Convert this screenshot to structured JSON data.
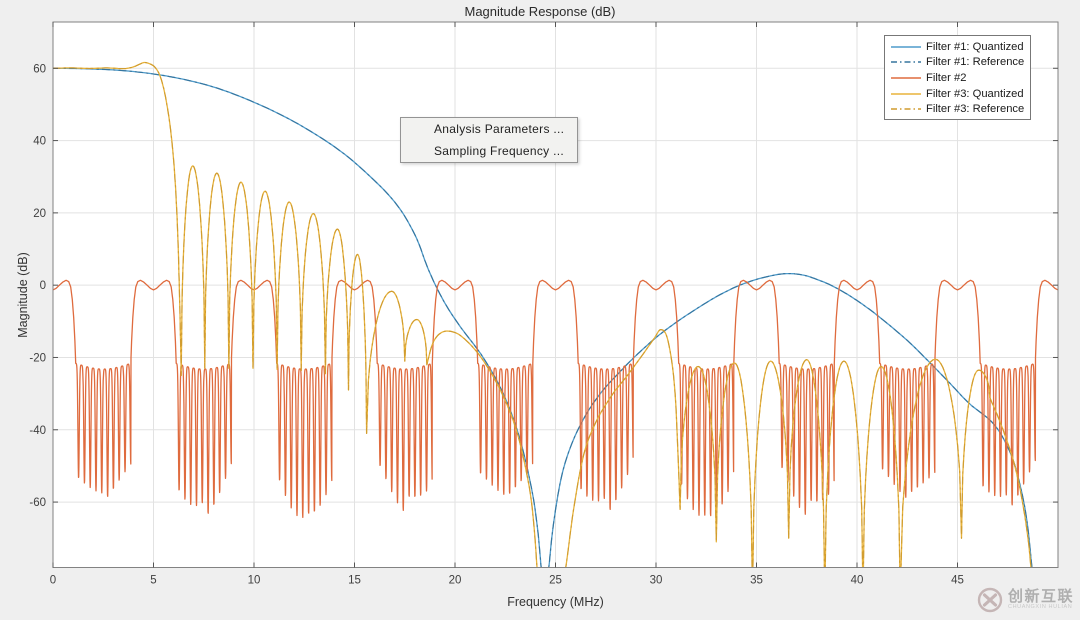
{
  "figure": {
    "background": "#efefef",
    "plot_background": "#ffffff",
    "grid_color": "#e2e2e2",
    "axis_color": "#828282",
    "tick_label_color": "#3f3f3f"
  },
  "watermark": {
    "logo_icon": "circle-x-logo",
    "main_text": "创新互联",
    "sub_text": "CHUANGXIN HULIAN",
    "color": "#acacac",
    "logo_color": "#c3b3b3"
  },
  "chart_data": {
    "type": "line",
    "title": "Magnitude Response (dB)",
    "xlabel": "Frequency (MHz)",
    "ylabel": "Magnitude (dB)",
    "xlim": [
      0,
      50
    ],
    "ylim": [
      -78.1,
      72.8
    ],
    "xticks": [
      0,
      5,
      10,
      15,
      20,
      25,
      30,
      35,
      40,
      45
    ],
    "yticks": [
      60,
      40,
      20,
      0,
      -20,
      -40,
      -60
    ],
    "grid": true,
    "legend_position": "northeast",
    "annotation_menu": {
      "items": [
        "Analysis Parameters ...",
        "Sampling Frequency ..."
      ]
    },
    "series": [
      {
        "name": "Filter #1: Quantized",
        "color": "#4e9bcb",
        "style": "solid",
        "kind": "spline",
        "points": [
          [
            0,
            60
          ],
          [
            2,
            59.8
          ],
          [
            4,
            59.1
          ],
          [
            6,
            57.5
          ],
          [
            8,
            54.8
          ],
          [
            10,
            50.6
          ],
          [
            12,
            45.2
          ],
          [
            14,
            38.3
          ],
          [
            15.5,
            31.5
          ],
          [
            17,
            23
          ],
          [
            18,
            14
          ],
          [
            18.7,
            4
          ],
          [
            19.4,
            -4
          ],
          [
            20.2,
            -11
          ],
          [
            21.4,
            -20
          ],
          [
            22.4,
            -30
          ],
          [
            23.2,
            -42
          ],
          [
            23.8,
            -56
          ],
          [
            24.1,
            -67
          ],
          [
            24.3,
            -79
          ],
          [
            24.45,
            -88
          ],
          [
            24.65,
            -79
          ],
          [
            24.9,
            -66
          ],
          [
            25.3,
            -53
          ],
          [
            25.8,
            -44
          ],
          [
            26.5,
            -36
          ],
          [
            27.3,
            -29.5
          ],
          [
            28.2,
            -24
          ],
          [
            29,
            -19.5
          ],
          [
            30,
            -14.5
          ],
          [
            31,
            -10.3
          ],
          [
            32,
            -6.6
          ],
          [
            33,
            -3.2
          ],
          [
            34,
            -0.4
          ],
          [
            35,
            1.6
          ],
          [
            36,
            2.9
          ],
          [
            36.7,
            3.2
          ],
          [
            37.4,
            2.7
          ],
          [
            38,
            1.6
          ],
          [
            38.7,
            0
          ],
          [
            39.6,
            -2.8
          ],
          [
            40.6,
            -6.6
          ],
          [
            41.6,
            -11
          ],
          [
            42.6,
            -15.8
          ],
          [
            43.6,
            -21.3
          ],
          [
            44.6,
            -27
          ],
          [
            45.6,
            -32.8
          ],
          [
            46.8,
            -38.4
          ],
          [
            47.6,
            -46
          ],
          [
            48.1,
            -55
          ],
          [
            48.45,
            -65
          ],
          [
            48.7,
            -78
          ],
          [
            48.85,
            -86
          ]
        ]
      },
      {
        "name": "Filter #1: Reference",
        "color": "#36759e",
        "style": "dashdot",
        "kind": "reference",
        "ref_of": 0
      },
      {
        "name": "Filter #2",
        "color": "#df6b3e",
        "style": "solid",
        "kind": "comb",
        "comb": {
          "period": 5,
          "bump_profile": [
            [
              0,
              -1.3
            ],
            [
              0.15,
              -0.9
            ],
            [
              0.3,
              -0.1
            ],
            [
              0.5,
              0.9
            ],
            [
              0.65,
              1.35
            ],
            [
              0.78,
              1.0
            ],
            [
              0.88,
              -0.5
            ],
            [
              0.96,
              -4
            ],
            [
              1.03,
              -9
            ],
            [
              1.09,
              -15.5
            ],
            [
              1.13,
              -21.6
            ]
          ],
          "bump_halfwidth": 1.13,
          "stopband_top": -21.6,
          "top_sag": 1.6,
          "notch_cells": 9.5,
          "notch_sigma": 0.115,
          "depth_base": -52,
          "depth_swing": 9,
          "depth_jitter": 3.5
        }
      },
      {
        "name": "Filter #3: Quantized",
        "color": "#e8b33c",
        "style": "solid",
        "kind": "segments",
        "segments": [
          {
            "mode": "line",
            "pts": [
              [
                0,
                60
              ],
              [
                0.9,
                60.1
              ],
              [
                1.8,
                59.95
              ],
              [
                2.7,
                60.1
              ],
              [
                3.5,
                59.9
              ],
              [
                3.95,
                60.3
              ],
              [
                4.3,
                61.1
              ],
              [
                4.55,
                61.6
              ],
              [
                4.85,
                61.15
              ],
              [
                5.1,
                60.1
              ],
              [
                5.35,
                57.5
              ],
              [
                5.6,
                52
              ],
              [
                5.85,
                43
              ],
              [
                6.05,
                31
              ],
              [
                6.2,
                15
              ],
              [
                6.3,
                -4
              ],
              [
                6.38,
                -25
              ]
            ]
          },
          {
            "mode": "lobes",
            "pts": [
              [
                6.38,
                -25
              ],
              [
                6.95,
                33
              ],
              [
                7.55,
                -23
              ],
              [
                8.15,
                31
              ],
              [
                8.75,
                -23
              ],
              [
                9.35,
                28.5
              ],
              [
                9.95,
                -23
              ],
              [
                10.55,
                26
              ],
              [
                11.15,
                -23.3
              ],
              [
                11.75,
                23
              ],
              [
                12.35,
                -23.6
              ],
              [
                12.95,
                19.8
              ],
              [
                13.55,
                -24.5
              ],
              [
                14.15,
                15.5
              ],
              [
                14.7,
                -29
              ],
              [
                15.15,
                8.5
              ],
              [
                15.6,
                -41
              ],
              [
                16.85,
                -1.7
              ],
              [
                17.5,
                -21
              ],
              [
                18.1,
                -9.5
              ],
              [
                18.6,
                -22
              ]
            ]
          },
          {
            "mode": "line",
            "pts": [
              [
                18.6,
                -22
              ],
              [
                18.9,
                -16
              ],
              [
                19.3,
                -13.2
              ],
              [
                19.8,
                -12.8
              ],
              [
                20.4,
                -14.5
              ],
              [
                21.3,
                -20
              ],
              [
                22.3,
                -29.5
              ],
              [
                23.1,
                -41
              ],
              [
                23.7,
                -56
              ],
              [
                23.95,
                -68
              ],
              [
                24.15,
                -82
              ],
              [
                24.45,
                -88
              ],
              [
                25.0,
                -88
              ],
              [
                25.45,
                -80
              ],
              [
                25.9,
                -62
              ],
              [
                26.4,
                -47
              ],
              [
                27.0,
                -38
              ],
              [
                27.8,
                -30.5
              ],
              [
                28.6,
                -24.8
              ],
              [
                29.3,
                -19.5
              ],
              [
                29.9,
                -14.8
              ],
              [
                30.25,
                -12.3
              ],
              [
                30.6,
                -15.5
              ],
              [
                30.95,
                -30
              ],
              [
                31.2,
                -62
              ]
            ]
          },
          {
            "mode": "lobes",
            "pts": [
              [
                31.2,
                -62
              ],
              [
                32.1,
                -22.5
              ],
              [
                33.0,
                -71
              ],
              [
                33.9,
                -21.5
              ],
              [
                34.8,
                -86
              ],
              [
                35.7,
                -21
              ],
              [
                36.6,
                -70
              ],
              [
                37.5,
                -20.6
              ],
              [
                38.4,
                -86
              ],
              [
                39.35,
                -21
              ],
              [
                40.3,
                -86
              ],
              [
                41.2,
                -22.5
              ],
              [
                42.15,
                -86
              ],
              [
                43.9,
                -20.5
              ],
              [
                45.2,
                -70
              ],
              [
                46.05,
                -23.5
              ],
              [
                46.6,
                -31
              ]
            ]
          },
          {
            "mode": "line",
            "pts": [
              [
                46.6,
                -31
              ],
              [
                47.2,
                -39
              ],
              [
                47.8,
                -49
              ],
              [
                48.2,
                -59
              ],
              [
                48.55,
                -72
              ],
              [
                48.75,
                -86
              ]
            ]
          }
        ]
      },
      {
        "name": "Filter #3: Reference",
        "color": "#d09c2f",
        "style": "dashdot",
        "kind": "reference",
        "ref_of": 3
      }
    ]
  }
}
